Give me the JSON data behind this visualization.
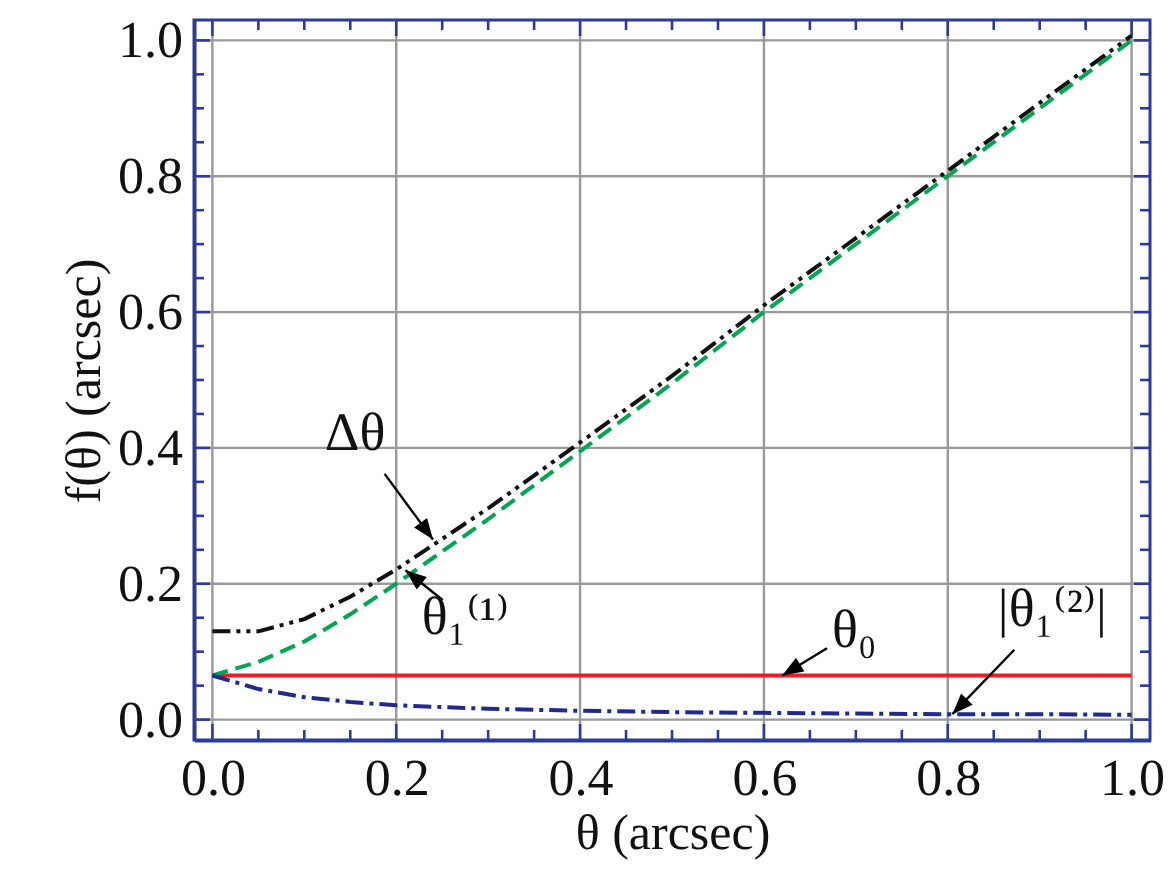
{
  "chart_data": {
    "type": "line",
    "xlabel": "θ (arcsec)",
    "ylabel": "f(θ) (arcsec)",
    "x": [
      0,
      0.05,
      0.1,
      0.15,
      0.2,
      0.3,
      0.4,
      0.5,
      0.6,
      0.7,
      0.8,
      0.9,
      1.0
    ],
    "series": [
      {
        "color": "#ee1c24",
        "line_style": "solid",
        "values": [
          0.065,
          0.065,
          0.065,
          0.065,
          0.065,
          0.065,
          0.065,
          0.065,
          0.065,
          0.065,
          0.065,
          0.065,
          0.065
        ]
      },
      {
        "color": "#00a651",
        "line_style": "dashed",
        "values": [
          0.065,
          0.085,
          0.115,
          0.155,
          0.2,
          0.295,
          0.395,
          0.495,
          0.6,
          0.7,
          0.8,
          0.9,
          1.0
        ]
      },
      {
        "color": "#111111",
        "line_style": "dashdotdot",
        "values": [
          0.13,
          0.13,
          0.148,
          0.181,
          0.221,
          0.311,
          0.408,
          0.506,
          0.61,
          0.709,
          0.808,
          0.908,
          1.007
        ]
      },
      {
        "color": "#1f2a8c",
        "line_style": "dashdot",
        "values": [
          0.065,
          0.045,
          0.033,
          0.026,
          0.021,
          0.016,
          0.013,
          0.011,
          0.01,
          0.009,
          0.008,
          0.008,
          0.007
        ]
      }
    ],
    "xlim": [
      -0.02,
      1.02
    ],
    "ylim": [
      -0.03,
      1.03
    ],
    "xticks": [
      {
        "value": 0,
        "label": "0.0"
      },
      {
        "value": 0.05,
        "label": null
      },
      {
        "value": 0.1,
        "label": null
      },
      {
        "value": 0.15,
        "label": null
      },
      {
        "value": 0.2,
        "label": "0.2"
      },
      {
        "value": 0.25,
        "label": null
      },
      {
        "value": 0.3,
        "label": null
      },
      {
        "value": 0.35,
        "label": null
      },
      {
        "value": 0.4,
        "label": "0.4"
      },
      {
        "value": 0.45,
        "label": null
      },
      {
        "value": 0.5,
        "label": null
      },
      {
        "value": 0.55,
        "label": null
      },
      {
        "value": 0.6,
        "label": "0.6"
      },
      {
        "value": 0.65,
        "label": null
      },
      {
        "value": 0.7,
        "label": null
      },
      {
        "value": 0.75,
        "label": null
      },
      {
        "value": 0.8,
        "label": "0.8"
      },
      {
        "value": 0.85,
        "label": null
      },
      {
        "value": 0.9,
        "label": null
      },
      {
        "value": 0.95,
        "label": null
      },
      {
        "value": 1,
        "label": "1.0"
      }
    ],
    "yticks": [
      {
        "value": 0,
        "label": "0.0"
      },
      {
        "value": 0.05,
        "label": null
      },
      {
        "value": 0.1,
        "label": null
      },
      {
        "value": 0.15,
        "label": null
      },
      {
        "value": 0.2,
        "label": "0.2"
      },
      {
        "value": 0.25,
        "label": null
      },
      {
        "value": 0.3,
        "label": null
      },
      {
        "value": 0.35,
        "label": null
      },
      {
        "value": 0.4,
        "label": "0.4"
      },
      {
        "value": 0.45,
        "label": null
      },
      {
        "value": 0.5,
        "label": null
      },
      {
        "value": 0.55,
        "label": null
      },
      {
        "value": 0.6,
        "label": "0.6"
      },
      {
        "value": 0.65,
        "label": null
      },
      {
        "value": 0.7,
        "label": null
      },
      {
        "value": 0.75,
        "label": null
      },
      {
        "value": 0.8,
        "label": "0.8"
      },
      {
        "value": 0.85,
        "label": null
      },
      {
        "value": 0.9,
        "label": null
      },
      {
        "value": 0.95,
        "label": null
      },
      {
        "value": 1,
        "label": "1.0"
      }
    ],
    "grid": true,
    "marker": "none",
    "annotations": [
      {
        "text": "Δθ",
        "x": 0.24,
        "y": 0.265
      },
      {
        "text": "θ₁⁽¹⁾",
        "x": 0.21,
        "y": 0.22
      },
      {
        "text": "θ₀",
        "x": 0.62,
        "y": 0.065
      },
      {
        "text": "|θ₁⁽²⁾|",
        "x": 0.805,
        "y": 0.008
      }
    ]
  }
}
